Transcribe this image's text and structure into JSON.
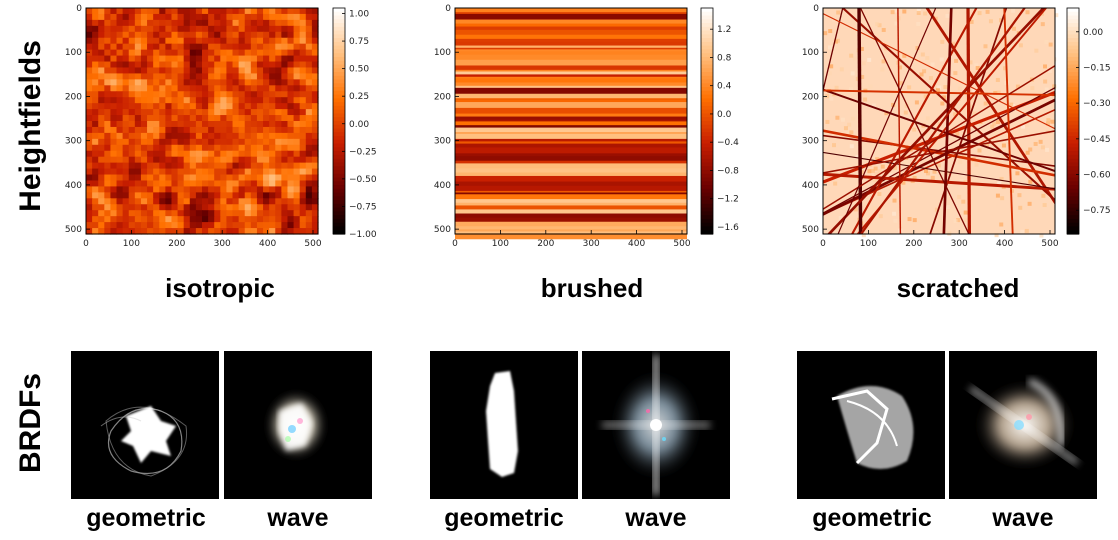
{
  "row_labels": {
    "top": "Heightfields",
    "bottom": "BRDFs"
  },
  "panels": [
    {
      "id": "isotropic",
      "caption": "isotropic",
      "pattern": "isotropic",
      "cmap_colors": [
        "#000000",
        "#6b0000",
        "#c81e00",
        "#ff7000",
        "#ffc080",
        "#ffffff"
      ],
      "chart_data": {
        "type": "heatmap",
        "title": "",
        "xlim": [
          0,
          511
        ],
        "ylim": [
          511,
          0
        ],
        "xticks": [
          "0",
          "100",
          "200",
          "300",
          "400",
          "500"
        ],
        "yticks": [
          "0",
          "100",
          "200",
          "300",
          "400",
          "500"
        ],
        "xtick_values": [
          0,
          100,
          200,
          300,
          400,
          500
        ],
        "ytick_values": [
          0,
          100,
          200,
          300,
          400,
          500
        ],
        "colorbar": {
          "range": [
            -1.0,
            1.05
          ],
          "ticks": [
            1.0,
            0.75,
            0.5,
            0.25,
            0.0,
            -0.25,
            -0.5,
            -0.75,
            -1.0
          ],
          "tick_labels": [
            "1.00",
            "0.75",
            "0.50",
            "0.25",
            "0.00",
            "−0.25",
            "−0.50",
            "−0.75",
            "−1.00"
          ]
        }
      },
      "brdf": {
        "left_label": "geometric",
        "right_label": "wave"
      }
    },
    {
      "id": "brushed",
      "caption": "brushed",
      "pattern": "brushed",
      "cmap_colors": [
        "#000000",
        "#6b0000",
        "#c81e00",
        "#ff7000",
        "#ffc080",
        "#ffffff"
      ],
      "chart_data": {
        "type": "heatmap",
        "title": "",
        "xlim": [
          0,
          511
        ],
        "ylim": [
          511,
          0
        ],
        "xticks": [
          "0",
          "100",
          "200",
          "300",
          "400",
          "500"
        ],
        "yticks": [
          "0",
          "100",
          "200",
          "300",
          "400",
          "500"
        ],
        "xtick_values": [
          0,
          100,
          200,
          300,
          400,
          500
        ],
        "ytick_values": [
          0,
          100,
          200,
          300,
          400,
          500
        ],
        "colorbar": {
          "range": [
            -1.7,
            1.5
          ],
          "ticks": [
            1.2,
            0.8,
            0.4,
            0.0,
            -0.4,
            -0.8,
            -1.2,
            -1.6
          ],
          "tick_labels": [
            "1.2",
            "0.8",
            "0.4",
            "0.0",
            "−0.4",
            "−0.8",
            "−1.2",
            "−1.6"
          ]
        }
      },
      "brdf": {
        "left_label": "geometric",
        "right_label": "wave"
      }
    },
    {
      "id": "scratched",
      "caption": "scratched",
      "pattern": "scratched",
      "cmap_colors": [
        "#000000",
        "#6b0000",
        "#c81e00",
        "#ff7000",
        "#ffc080",
        "#ffffff"
      ],
      "chart_data": {
        "type": "heatmap",
        "title": "",
        "xlim": [
          0,
          511
        ],
        "ylim": [
          511,
          0
        ],
        "xticks": [
          "0",
          "100",
          "200",
          "300",
          "400",
          "500"
        ],
        "yticks": [
          "0",
          "100",
          "200",
          "300",
          "400",
          "500"
        ],
        "xtick_values": [
          0,
          100,
          200,
          300,
          400,
          500
        ],
        "ytick_values": [
          0,
          100,
          200,
          300,
          400,
          500
        ],
        "colorbar": {
          "range": [
            -0.85,
            0.1
          ],
          "ticks": [
            0.0,
            -0.15,
            -0.3,
            -0.45,
            -0.6,
            -0.75
          ],
          "tick_labels": [
            "0.00",
            "−0.15",
            "−0.30",
            "−0.45",
            "−0.60",
            "−0.75"
          ]
        }
      },
      "brdf": {
        "left_label": "geometric",
        "right_label": "wave"
      }
    }
  ]
}
